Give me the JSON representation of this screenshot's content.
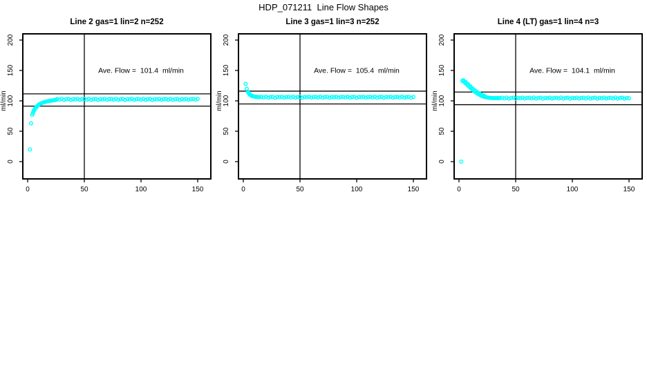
{
  "page": {
    "title": "HDP_071211  Line Flow Shapes"
  },
  "colors": {
    "point": "#00FFFF",
    "axis": "#000000",
    "background": "#FFFFFF",
    "text": "#000000"
  },
  "axes": {
    "xlim": [
      0,
      150
    ],
    "ylim": [
      0,
      200
    ],
    "x_ticks": [
      0,
      50,
      100,
      150
    ],
    "y_ticks": [
      0,
      50,
      100,
      150,
      200
    ],
    "xlabel": "",
    "ylabel": "ml/min",
    "vline_x": 50,
    "grid": false,
    "legend": "none"
  },
  "chart_data": [
    {
      "type": "scatter",
      "title": "Line 2 gas=1 lin=2 n=252",
      "line": 2,
      "gas": 1,
      "lin": 2,
      "n": 252,
      "ave_flow": 101.4,
      "annotation": "Ave. Flow =  101.4  ml/min",
      "ref_lines": [
        111.5,
        91.3
      ],
      "xlabel": "",
      "ylabel": "ml/min",
      "xlim": [
        0,
        150
      ],
      "ylim": [
        0,
        200
      ],
      "points": [
        [
          2,
          20
        ],
        [
          3,
          63
        ],
        [
          4,
          77
        ],
        [
          4.7,
          79.5
        ],
        [
          5,
          82.5
        ],
        [
          5.7,
          84.5
        ],
        [
          6,
          86
        ],
        [
          6.7,
          87.5
        ],
        [
          7,
          88.5
        ],
        [
          7.7,
          89.8
        ],
        [
          8,
          90.5
        ],
        [
          8.7,
          91.6
        ],
        [
          9,
          92.3
        ],
        [
          9.7,
          93.3
        ],
        [
          10,
          94
        ],
        [
          11,
          95
        ],
        [
          12,
          96
        ],
        [
          13,
          96.8
        ],
        [
          14,
          97.5
        ],
        [
          15,
          98.1
        ],
        [
          16,
          98.6
        ],
        [
          17,
          99
        ],
        [
          18,
          99.4
        ],
        [
          19,
          99.8
        ],
        [
          20,
          100.1
        ],
        [
          21,
          100.4
        ],
        [
          22,
          100.7
        ],
        [
          23,
          101
        ],
        [
          24,
          101.2
        ],
        [
          25,
          101.5
        ],
        [
          26,
          103.1
        ],
        [
          28,
          102
        ],
        [
          30,
          103.4
        ],
        [
          32,
          101.7
        ],
        [
          34,
          102.7
        ],
        [
          36,
          103.2
        ],
        [
          38,
          101.6
        ],
        [
          40,
          102.9
        ],
        [
          42,
          102.4
        ],
        [
          44,
          103.3
        ],
        [
          46,
          101.9
        ],
        [
          48,
          102.8
        ],
        [
          50,
          103.1
        ],
        [
          52,
          102
        ],
        [
          54,
          103.4
        ],
        [
          56,
          101.7
        ],
        [
          58,
          102.7
        ],
        [
          60,
          103.2
        ],
        [
          62,
          101.6
        ],
        [
          64,
          102.9
        ],
        [
          66,
          102.4
        ],
        [
          68,
          103.3
        ],
        [
          70,
          101.9
        ],
        [
          72,
          102.8
        ],
        [
          74,
          103.1
        ],
        [
          76,
          102
        ],
        [
          78,
          103.4
        ],
        [
          80,
          101.7
        ],
        [
          82,
          102.7
        ],
        [
          84,
          103.2
        ],
        [
          86,
          101.6
        ],
        [
          88,
          102.9
        ],
        [
          90,
          102.4
        ],
        [
          92,
          103.3
        ],
        [
          94,
          101.9
        ],
        [
          96,
          102.8
        ],
        [
          98,
          103.1
        ],
        [
          100,
          102
        ],
        [
          102,
          103.4
        ],
        [
          104,
          101.7
        ],
        [
          106,
          102.7
        ],
        [
          108,
          103.2
        ],
        [
          110,
          101.6
        ],
        [
          112,
          102.9
        ],
        [
          114,
          102.4
        ],
        [
          116,
          103.3
        ],
        [
          118,
          101.9
        ],
        [
          120,
          102.8
        ],
        [
          122,
          103.1
        ],
        [
          124,
          102
        ],
        [
          126,
          103.4
        ],
        [
          128,
          101.7
        ],
        [
          130,
          102.7
        ],
        [
          132,
          103.2
        ],
        [
          134,
          101.6
        ],
        [
          136,
          102.9
        ],
        [
          138,
          102.4
        ],
        [
          140,
          103.3
        ],
        [
          142,
          101.9
        ],
        [
          144,
          102.8
        ],
        [
          146,
          103.1
        ],
        [
          148,
          102
        ],
        [
          150,
          103.4
        ]
      ]
    },
    {
      "type": "scatter",
      "title": "Line 3 gas=1 lin=3 n=252",
      "line": 3,
      "gas": 1,
      "lin": 3,
      "n": 252,
      "ave_flow": 105.4,
      "annotation": "Ave. Flow =  105.4  ml/min",
      "ref_lines": [
        116,
        94.9
      ],
      "xlabel": "",
      "ylabel": "ml/min",
      "xlim": [
        0,
        150
      ],
      "ylim": [
        0,
        200
      ],
      "points": [
        [
          2,
          128
        ],
        [
          3,
          120
        ],
        [
          4,
          115
        ],
        [
          4.5,
          113.5
        ],
        [
          5,
          112
        ],
        [
          5.5,
          110.8
        ],
        [
          6,
          110
        ],
        [
          6.5,
          109.3
        ],
        [
          7,
          108.8
        ],
        [
          7.5,
          108.3
        ],
        [
          8,
          108
        ],
        [
          9,
          107.4
        ],
        [
          10,
          107
        ],
        [
          11,
          106.7
        ],
        [
          12,
          106.5
        ],
        [
          13,
          106.3
        ],
        [
          14,
          106.2
        ],
        [
          16,
          106.6
        ],
        [
          18,
          105.5
        ],
        [
          20,
          106.9
        ],
        [
          22,
          105.2
        ],
        [
          24,
          106.2
        ],
        [
          26,
          106.7
        ],
        [
          28,
          105.1
        ],
        [
          30,
          106.4
        ],
        [
          32,
          105.9
        ],
        [
          34,
          106.8
        ],
        [
          36,
          105.4
        ],
        [
          38,
          106.3
        ],
        [
          40,
          106.6
        ],
        [
          42,
          105.5
        ],
        [
          44,
          106.9
        ],
        [
          46,
          105.2
        ],
        [
          48,
          106.2
        ],
        [
          50,
          106.7
        ],
        [
          52,
          105.1
        ],
        [
          54,
          106.4
        ],
        [
          56,
          105.9
        ],
        [
          58,
          106.8
        ],
        [
          60,
          105.4
        ],
        [
          62,
          106.3
        ],
        [
          64,
          106.6
        ],
        [
          66,
          105.5
        ],
        [
          68,
          106.9
        ],
        [
          70,
          105.2
        ],
        [
          72,
          106.2
        ],
        [
          74,
          106.7
        ],
        [
          76,
          105.1
        ],
        [
          78,
          106.4
        ],
        [
          80,
          105.9
        ],
        [
          82,
          106.8
        ],
        [
          84,
          105.4
        ],
        [
          86,
          106.3
        ],
        [
          88,
          106.6
        ],
        [
          90,
          105.5
        ],
        [
          92,
          106.9
        ],
        [
          94,
          105.2
        ],
        [
          96,
          106.2
        ],
        [
          98,
          106.7
        ],
        [
          100,
          105.1
        ],
        [
          102,
          106.4
        ],
        [
          104,
          105.9
        ],
        [
          106,
          106.8
        ],
        [
          108,
          105.4
        ],
        [
          110,
          106.3
        ],
        [
          112,
          106.6
        ],
        [
          114,
          105.5
        ],
        [
          116,
          106.9
        ],
        [
          118,
          105.2
        ],
        [
          120,
          106.2
        ],
        [
          122,
          106.7
        ],
        [
          124,
          105.1
        ],
        [
          126,
          106.4
        ],
        [
          128,
          105.9
        ],
        [
          130,
          106.8
        ],
        [
          132,
          105.4
        ],
        [
          134,
          106.3
        ],
        [
          136,
          106.6
        ],
        [
          138,
          105.5
        ],
        [
          140,
          106.9
        ],
        [
          142,
          105.2
        ],
        [
          144,
          106.2
        ],
        [
          146,
          106.7
        ],
        [
          148,
          105.1
        ],
        [
          150,
          106.4
        ]
      ]
    },
    {
      "type": "scatter",
      "title": "Line 4 (LT) gas=1 lin=4 n=3",
      "line": 4,
      "line_note": "LT",
      "gas": 1,
      "lin": 4,
      "n": 3,
      "ave_flow": 104.1,
      "annotation": "Ave. Flow =  104.1  ml/min",
      "ref_lines": [
        114.5,
        93.7
      ],
      "xlabel": "",
      "ylabel": "ml/min",
      "xlim": [
        0,
        150
      ],
      "ylim": [
        0,
        200
      ],
      "points": [
        [
          2,
          0
        ],
        [
          3,
          133
        ],
        [
          4,
          131.8
        ],
        [
          4,
          134
        ],
        [
          5,
          130.4
        ],
        [
          6,
          128.8
        ],
        [
          6,
          131
        ],
        [
          7,
          127
        ],
        [
          8,
          125.2
        ],
        [
          8,
          127.5
        ],
        [
          9,
          123.4
        ],
        [
          10,
          121.6
        ],
        [
          10,
          124
        ],
        [
          11,
          119.9
        ],
        [
          12,
          118.2
        ],
        [
          12,
          120.5
        ],
        [
          13,
          116.6
        ],
        [
          14,
          115.1
        ],
        [
          14,
          117.5
        ],
        [
          15,
          113.7
        ],
        [
          16,
          112.4
        ],
        [
          16,
          114.8
        ],
        [
          17,
          111.2
        ],
        [
          18,
          110.1
        ],
        [
          18,
          112.3
        ],
        [
          19,
          109.1
        ],
        [
          20,
          108.2
        ],
        [
          20,
          110.3
        ],
        [
          21,
          107.4
        ],
        [
          22,
          106.8
        ],
        [
          22,
          108.6
        ],
        [
          23,
          106.3
        ],
        [
          24,
          105.9
        ],
        [
          25,
          105.5
        ],
        [
          26,
          105.2
        ],
        [
          27,
          105
        ],
        [
          28,
          104.8
        ],
        [
          29,
          104.7
        ],
        [
          30,
          104.6
        ],
        [
          31,
          104.5
        ],
        [
          32,
          104.5
        ],
        [
          33,
          104.4
        ],
        [
          34,
          104.5
        ],
        [
          35,
          104.4
        ],
        [
          36,
          104.5
        ],
        [
          38,
          105.1
        ],
        [
          40,
          104
        ],
        [
          42,
          105.4
        ],
        [
          44,
          103.7
        ],
        [
          46,
          104.7
        ],
        [
          48,
          105.2
        ],
        [
          50,
          103.6
        ],
        [
          52,
          104.9
        ],
        [
          54,
          104.4
        ],
        [
          56,
          105.3
        ],
        [
          58,
          103.9
        ],
        [
          60,
          104.8
        ],
        [
          62,
          105.1
        ],
        [
          64,
          104
        ],
        [
          66,
          105.4
        ],
        [
          68,
          103.7
        ],
        [
          70,
          104.7
        ],
        [
          72,
          105.2
        ],
        [
          74,
          103.6
        ],
        [
          76,
          104.9
        ],
        [
          78,
          104.4
        ],
        [
          80,
          105.3
        ],
        [
          82,
          103.9
        ],
        [
          84,
          104.8
        ],
        [
          86,
          105.1
        ],
        [
          88,
          104
        ],
        [
          90,
          105.4
        ],
        [
          92,
          103.7
        ],
        [
          94,
          104.7
        ],
        [
          96,
          105.2
        ],
        [
          98,
          103.6
        ],
        [
          100,
          104.9
        ],
        [
          102,
          104.4
        ],
        [
          104,
          105.3
        ],
        [
          106,
          103.9
        ],
        [
          108,
          104.8
        ],
        [
          110,
          105.1
        ],
        [
          112,
          104
        ],
        [
          114,
          105.4
        ],
        [
          116,
          103.7
        ],
        [
          118,
          104.7
        ],
        [
          120,
          105.2
        ],
        [
          122,
          103.6
        ],
        [
          124,
          104.9
        ],
        [
          126,
          104.4
        ],
        [
          128,
          105.3
        ],
        [
          130,
          103.9
        ],
        [
          132,
          104.8
        ],
        [
          134,
          105.1
        ],
        [
          136,
          104
        ],
        [
          138,
          105.4
        ],
        [
          140,
          103.7
        ],
        [
          142,
          104.7
        ],
        [
          144,
          105.2
        ],
        [
          146,
          103.6
        ],
        [
          148,
          104.9
        ],
        [
          150,
          104.4
        ]
      ]
    }
  ]
}
